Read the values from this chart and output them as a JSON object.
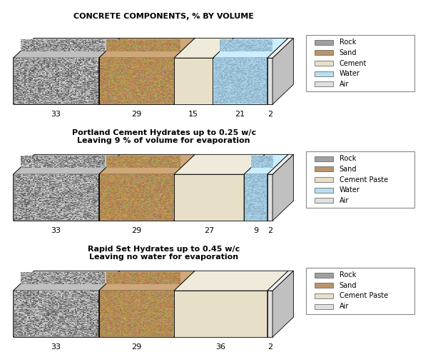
{
  "charts": [
    {
      "title": "CONCRETE COMPONENTS, % BY VOLUME",
      "title_fontsize": 8,
      "title_bold": true,
      "title_italic": false,
      "segments": [
        {
          "label": "Rock",
          "value": 33
        },
        {
          "label": "Sand",
          "value": 29
        },
        {
          "label": "Cement",
          "value": 15
        },
        {
          "label": "Water",
          "value": 21
        },
        {
          "label": "Air",
          "value": 2
        }
      ],
      "legend_labels": [
        "Rock",
        "Sand",
        "Cement",
        "Water",
        "Air"
      ]
    },
    {
      "title": "Portland Cement Hydrates up to 0.25 w/c\nLeaving 9 % of volume for evaporation",
      "title_fontsize": 8,
      "title_bold": true,
      "title_italic": false,
      "segments": [
        {
          "label": "Rock",
          "value": 33
        },
        {
          "label": "Sand",
          "value": 29
        },
        {
          "label": "Cement Paste",
          "value": 27
        },
        {
          "label": "Water",
          "value": 9
        },
        {
          "label": "Air",
          "value": 2
        }
      ],
      "legend_labels": [
        "Rock",
        "Sand",
        "Cement Paste",
        "Water",
        "Air"
      ]
    },
    {
      "title": "Rapid Set Hydrates up to 0.45 w/c\nLeaving no water for evaporation",
      "title_fontsize": 8,
      "title_bold": true,
      "title_italic": false,
      "segments": [
        {
          "label": "Rock",
          "value": 33
        },
        {
          "label": "Sand",
          "value": 29
        },
        {
          "label": "Cement Paste",
          "value": 36
        },
        {
          "label": "Air",
          "value": 2
        }
      ],
      "legend_labels": [
        "Rock",
        "Sand",
        "Cement Paste",
        "Air"
      ]
    }
  ],
  "segment_colors": {
    "Rock": {
      "face": "#a0a0a0",
      "top": "#c0c0c0",
      "side": "#787878"
    },
    "Sand": {
      "face": "#b8956a",
      "top": "#cfa87a",
      "side": "#9a7550"
    },
    "Cement": {
      "face": "#e8dfc8",
      "top": "#f0eada",
      "side": "#ccc0a8"
    },
    "Cement Paste": {
      "face": "#e8dfc8",
      "top": "#f0eada",
      "side": "#ccc0a8"
    },
    "Water": {
      "face": "#b8dff0",
      "top": "#cceeff",
      "side": "#90c0d8"
    },
    "Air": {
      "face": "#e0e0e0",
      "top": "#eeeeee",
      "side": "#c0c0c0"
    }
  },
  "legend_box_color": "#ffffff",
  "legend_edge_color": "#888888",
  "background": "#ffffff"
}
